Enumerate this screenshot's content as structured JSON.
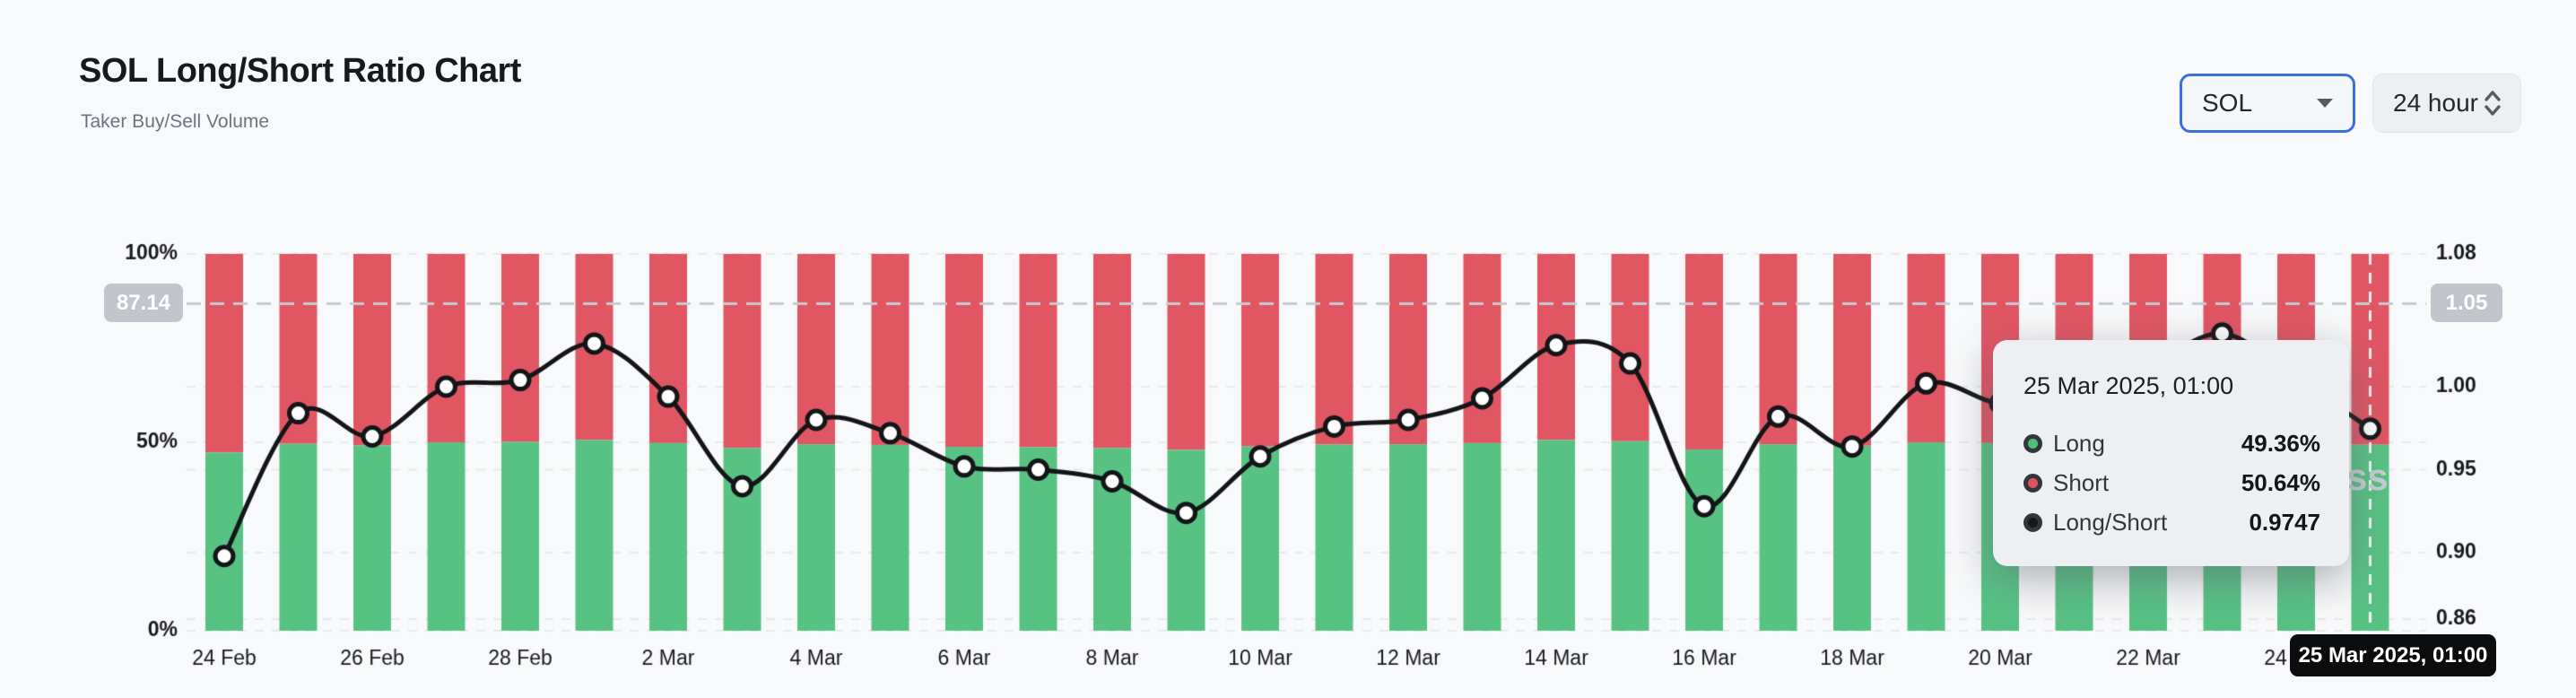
{
  "page": {
    "background": "#f8f9fa"
  },
  "header": {
    "title": "SOL Long/Short Ratio Chart",
    "subtitle": "Taker Buy/Sell Volume"
  },
  "controls": {
    "symbol_select": {
      "value": "SOL",
      "icon": "caret-down-icon",
      "accent_border": "#3a6fe0"
    },
    "interval_select": {
      "value": "24 hour",
      "icon": "chevron-up-down-icon"
    }
  },
  "crosshair": {
    "left_badge": "87.14",
    "right_badge": "1.05",
    "ratio_level": 1.05,
    "day_index": 29
  },
  "tooltip": {
    "title": "25 Mar 2025, 01:00",
    "rows": [
      {
        "label": "Long",
        "value": "49.36%",
        "color": "#4fbe7c"
      },
      {
        "label": "Short",
        "value": "50.64%",
        "color": "#e0525f"
      },
      {
        "label": "Long/Short",
        "value": "0.9747",
        "color": "#17181a"
      }
    ]
  },
  "cursor_label": {
    "text": "25 Mar 2025, 01:00"
  },
  "watermark_visible": "ss",
  "chart_data": {
    "type": "bar",
    "stacked": true,
    "grid": "dashed",
    "legend_position": "none",
    "title": "SOL Long/Short Ratio Chart",
    "x": [
      "24 Feb",
      "25 Feb",
      "26 Feb",
      "27 Feb",
      "28 Feb",
      "1 Mar",
      "2 Mar",
      "3 Mar",
      "4 Mar",
      "5 Mar",
      "6 Mar",
      "7 Mar",
      "8 Mar",
      "9 Mar",
      "10 Mar",
      "11 Mar",
      "12 Mar",
      "13 Mar",
      "14 Mar",
      "15 Mar",
      "16 Mar",
      "17 Mar",
      "18 Mar",
      "19 Mar",
      "20 Mar",
      "21 Mar",
      "22 Mar",
      "23 Mar",
      "24 Mar",
      "25 Mar"
    ],
    "x_tick_indices": [
      0,
      2,
      4,
      6,
      8,
      10,
      12,
      14,
      16,
      18,
      20,
      22,
      24,
      26,
      28
    ],
    "series": [
      {
        "name": "Long",
        "type": "bar",
        "unit": "%",
        "color": "#58c283",
        "values": [
          47.3,
          49.6,
          49.2,
          50.0,
          50.1,
          50.6,
          49.8,
          48.5,
          49.5,
          49.3,
          48.8,
          48.7,
          48.5,
          48.0,
          48.9,
          49.4,
          49.5,
          49.8,
          50.6,
          50.3,
          48.1,
          49.5,
          49.1,
          50.0,
          49.8,
          49.9,
          50.3,
          50.8,
          50.1,
          49.36
        ]
      },
      {
        "name": "Short",
        "type": "bar",
        "unit": "%",
        "color": "#e15663",
        "values": [
          52.7,
          50.4,
          50.8,
          50.0,
          49.9,
          49.4,
          50.2,
          51.5,
          50.5,
          50.7,
          51.2,
          51.3,
          51.5,
          52.0,
          51.1,
          50.6,
          50.5,
          50.2,
          49.4,
          49.7,
          51.9,
          50.5,
          50.9,
          50.0,
          50.2,
          50.1,
          49.7,
          49.2,
          49.9,
          50.64
        ]
      },
      {
        "name": "Long/Short",
        "type": "line",
        "axis": "right",
        "color": "#141518",
        "marker": "white-circle",
        "values": [
          0.898,
          0.984,
          0.97,
          1.0,
          1.004,
          1.026,
          0.994,
          0.94,
          0.98,
          0.972,
          0.952,
          0.95,
          0.943,
          0.924,
          0.958,
          0.976,
          0.98,
          0.993,
          1.025,
          1.014,
          0.928,
          0.982,
          0.964,
          1.002,
          0.99,
          0.996,
          1.012,
          1.032,
          1.005,
          0.9747
        ]
      }
    ],
    "left_axis": {
      "range": [
        0,
        100
      ],
      "ticks": [
        {
          "label": "100%",
          "value": 100
        },
        {
          "label": "50%",
          "value": 50
        },
        {
          "label": "0%",
          "value": 0
        }
      ]
    },
    "right_axis": {
      "value_at_top": 1.08,
      "value_at_bottom": 0.853,
      "ticks": [
        {
          "label": "1.08",
          "value": 1.08
        },
        {
          "label": "1.00",
          "value": 1.0
        },
        {
          "label": "0.95",
          "value": 0.95
        },
        {
          "label": "0.90",
          "value": 0.9
        },
        {
          "label": "0.86",
          "value": 0.86
        }
      ]
    },
    "highlight": {
      "day_index": 29,
      "ratio": 0.9747,
      "long_pct": 49.36,
      "short_pct": 50.64
    }
  }
}
